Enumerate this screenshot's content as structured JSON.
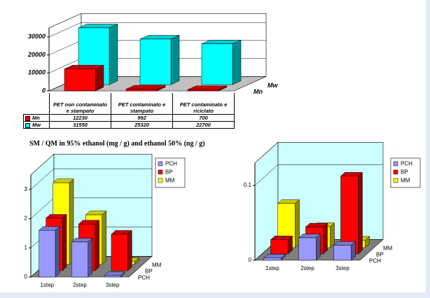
{
  "caption": "SM / QM in 95% ethanol (mg / g) and ethanol 50% (ng / g)",
  "chart_data": [
    {
      "type": "bar3d",
      "categories": [
        "PET non contaminato e stampato",
        "PET contaminato e stampato",
        "PET contaminato e riciclato"
      ],
      "series": [
        {
          "name": "Mn",
          "color": "#ff0000",
          "values": [
            12230,
            992,
            700
          ]
        },
        {
          "name": "Mw",
          "color": "#00ffff",
          "values": [
            31550,
            25320,
            22700
          ]
        }
      ],
      "ylim": [
        0,
        35000
      ],
      "yticks": [
        0,
        10000,
        20000,
        30000
      ],
      "grid": true,
      "data_table": true
    },
    {
      "type": "bar3d",
      "categories": [
        "1step",
        "2step",
        "3step"
      ],
      "series": [
        {
          "name": "PCH",
          "color": "#9999ff",
          "values": [
            1.6,
            1.2,
            0.05
          ]
        },
        {
          "name": "BP",
          "color": "#ff0000",
          "values": [
            1.8,
            1.6,
            1.25
          ]
        },
        {
          "name": "MM",
          "color": "#ffff00",
          "values": [
            2.8,
            1.7,
            0.1
          ]
        }
      ],
      "ylim": [
        0,
        3.5
      ],
      "yticks": [
        0,
        1,
        2,
        3
      ],
      "grid": true,
      "legend": "upper right"
    },
    {
      "type": "bar3d",
      "categories": [
        "1step",
        "2step",
        "3step"
      ],
      "series": [
        {
          "name": "PCH",
          "color": "#9999ff",
          "values": [
            0.003,
            0.03,
            0.02
          ]
        },
        {
          "name": "BP",
          "color": "#ff0000",
          "values": [
            0.019,
            0.036,
            0.104
          ]
        },
        {
          "name": "MM",
          "color": "#ffff00",
          "values": [
            0.059,
            0.028,
            0.01
          ]
        }
      ],
      "ylim": [
        0,
        0.13
      ],
      "yticks": [
        0,
        0.1
      ],
      "grid": true,
      "legend": "upper right"
    }
  ]
}
